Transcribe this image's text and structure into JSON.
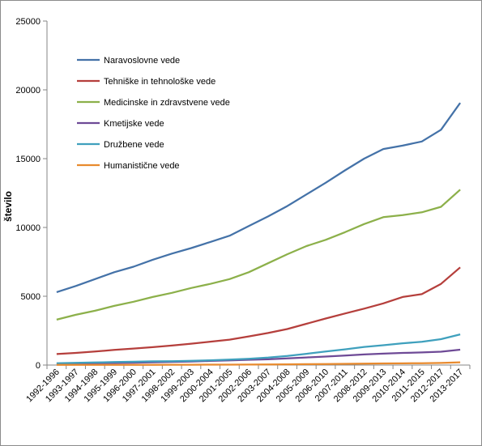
{
  "chart_data": {
    "type": "line",
    "ylabel": "število",
    "ylim": [
      0,
      25000
    ],
    "yticks": [
      0,
      5000,
      10000,
      15000,
      20000,
      25000
    ],
    "yticks_text": [
      "0",
      "5000",
      "10000",
      "15000",
      "20000",
      "25000"
    ],
    "grid": false,
    "legend_position": "top-left",
    "categories": [
      "1992-1996",
      "1993-1997",
      "1994-1998",
      "1995-1999",
      "1996-2000",
      "1997-2001",
      "1998-2002",
      "1999-2003",
      "2000-2004",
      "2001-2005",
      "2002-2006",
      "2003-2007",
      "2004-2008",
      "2005-2009",
      "2006-2010",
      "2007-2011",
      "2008-2012",
      "2009-2013",
      "2010-2014",
      "2011-2015",
      "2012-2017",
      "2013-2017"
    ],
    "series": [
      {
        "name": "Naravoslovne vede",
        "color": "#4472a8",
        "values": [
          5300,
          5750,
          6250,
          6750,
          7150,
          7650,
          8100,
          8500,
          8950,
          9400,
          10100,
          10800,
          11550,
          12400,
          13250,
          14150,
          15000,
          15700,
          15950,
          16250,
          17100,
          19050
        ]
      },
      {
        "name": "Tehniške in tehnološke vede",
        "color": "#b53f3c",
        "values": [
          800,
          880,
          980,
          1100,
          1200,
          1300,
          1420,
          1550,
          1700,
          1850,
          2080,
          2330,
          2620,
          3000,
          3380,
          3750,
          4100,
          4480,
          4950,
          5150,
          5900,
          7100
        ]
      },
      {
        "name": "Medicinske in zdravstvene vede",
        "color": "#8cb04a",
        "values": [
          3300,
          3650,
          3950,
          4300,
          4600,
          4950,
          5250,
          5600,
          5900,
          6250,
          6750,
          7400,
          8050,
          8650,
          9100,
          9650,
          10250,
          10750,
          10900,
          11100,
          11500,
          12750
        ]
      },
      {
        "name": "Kmetijske vede",
        "color": "#6e4a96",
        "values": [
          90,
          110,
          130,
          150,
          170,
          200,
          230,
          260,
          300,
          340,
          380,
          420,
          480,
          550,
          620,
          690,
          770,
          830,
          880,
          920,
          970,
          1120
        ]
      },
      {
        "name": "Družbene vede",
        "color": "#3fa0bd",
        "values": [
          130,
          160,
          190,
          220,
          240,
          270,
          280,
          310,
          350,
          400,
          460,
          540,
          660,
          820,
          990,
          1140,
          1320,
          1440,
          1580,
          1690,
          1880,
          2230
        ]
      },
      {
        "name": "Humanistične vede",
        "color": "#e88a2e",
        "values": [
          10,
          12,
          14,
          16,
          18,
          20,
          22,
          25,
          28,
          32,
          38,
          45,
          55,
          65,
          75,
          90,
          105,
          115,
          125,
          135,
          150,
          200
        ]
      }
    ]
  }
}
